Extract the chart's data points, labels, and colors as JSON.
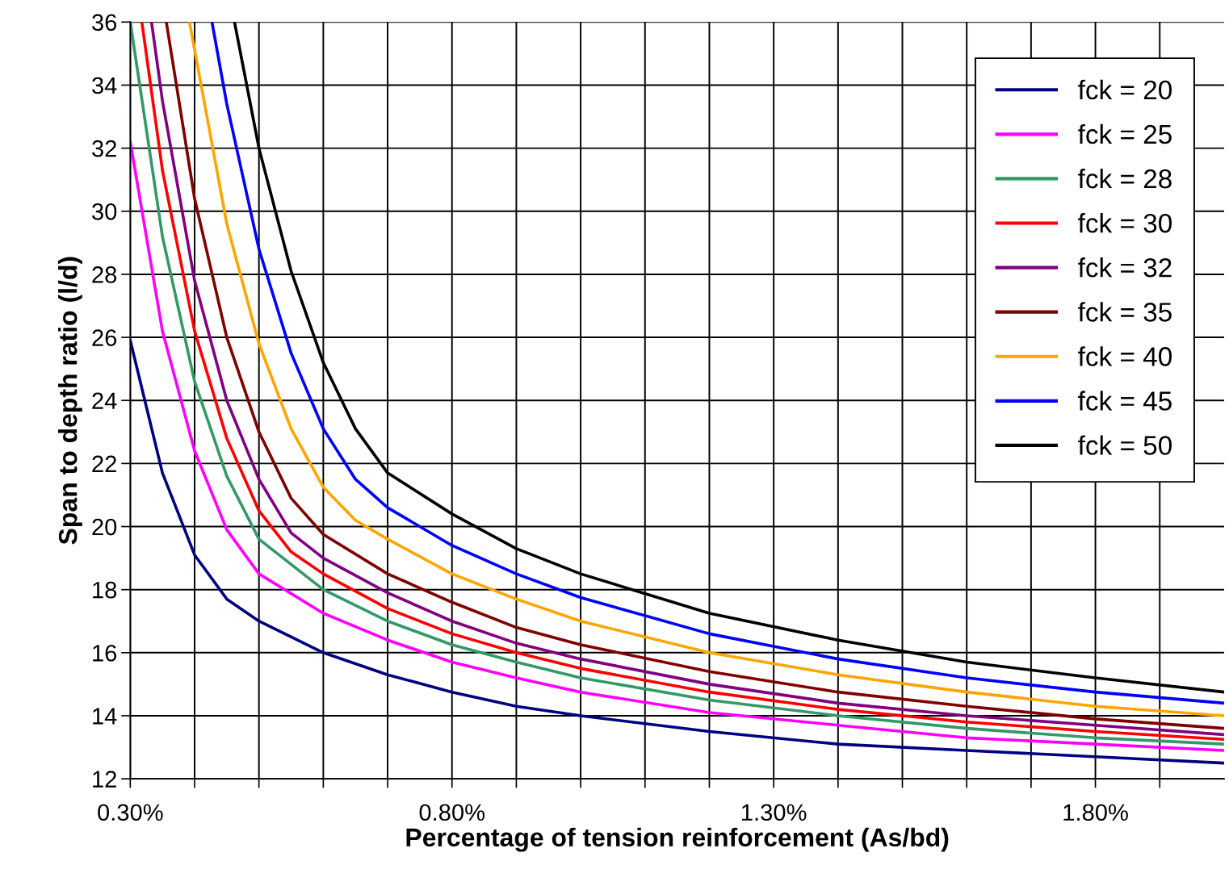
{
  "chart_data": {
    "type": "line",
    "xlabel": "Percentage of tension reinforcement (As/bd)",
    "ylabel": "Span to depth ratio (l/d)",
    "xlim": [
      0.3,
      2.0
    ],
    "ylim": [
      12,
      36
    ],
    "xticks": [
      {
        "value": 0.3,
        "label": "0.30%"
      },
      {
        "value": 0.4,
        "label": null
      },
      {
        "value": 0.5,
        "label": null
      },
      {
        "value": 0.6,
        "label": null
      },
      {
        "value": 0.7,
        "label": null
      },
      {
        "value": 0.8,
        "label": "0.80%"
      },
      {
        "value": 0.9,
        "label": null
      },
      {
        "value": 1.0,
        "label": null
      },
      {
        "value": 1.1,
        "label": null
      },
      {
        "value": 1.2,
        "label": null
      },
      {
        "value": 1.3,
        "label": "1.30%"
      },
      {
        "value": 1.4,
        "label": null
      },
      {
        "value": 1.5,
        "label": null
      },
      {
        "value": 1.6,
        "label": null
      },
      {
        "value": 1.7,
        "label": null
      },
      {
        "value": 1.8,
        "label": "1.80%"
      },
      {
        "value": 1.9,
        "label": null
      }
    ],
    "yticks": [
      12,
      14,
      16,
      18,
      20,
      22,
      24,
      26,
      28,
      30,
      32,
      34,
      36
    ],
    "grid": true,
    "legend": "top right",
    "marker": "none",
    "line_style": "solid",
    "series": [
      {
        "name": "fck = 20",
        "color": "#000080",
        "x": [
          0.3,
          0.35,
          0.4,
          0.45,
          0.5,
          0.6,
          0.7,
          0.8,
          0.9,
          1.0,
          1.2,
          1.4,
          1.6,
          1.8,
          2.0
        ],
        "values": [
          25.9,
          21.7,
          19.1,
          17.7,
          17.0,
          16.0,
          15.3,
          14.75,
          14.3,
          14.0,
          13.5,
          13.1,
          12.9,
          12.7,
          12.5
        ]
      },
      {
        "name": "fck = 25",
        "color": "#ff00ff",
        "x": [
          0.3,
          0.35,
          0.4,
          0.45,
          0.5,
          0.6,
          0.7,
          0.8,
          0.9,
          1.0,
          1.2,
          1.4,
          1.6,
          1.8,
          2.0
        ],
        "values": [
          32.2,
          26.2,
          22.4,
          19.9,
          18.5,
          17.25,
          16.4,
          15.7,
          15.2,
          14.75,
          14.1,
          13.7,
          13.3,
          13.1,
          12.9
        ]
      },
      {
        "name": "fck = 28",
        "color": "#339966",
        "x": [
          0.3,
          0.35,
          0.4,
          0.45,
          0.5,
          0.6,
          0.7,
          0.8,
          0.9,
          1.0,
          1.2,
          1.4,
          1.6,
          1.8,
          2.0
        ],
        "values": [
          36.0,
          29.2,
          24.6,
          21.6,
          19.6,
          18.0,
          17.0,
          16.25,
          15.7,
          15.2,
          14.5,
          14.0,
          13.6,
          13.3,
          13.1
        ]
      },
      {
        "name": "fck = 30",
        "color": "#ff0000",
        "x": [
          0.318,
          0.35,
          0.4,
          0.45,
          0.5,
          0.55,
          0.6,
          0.7,
          0.8,
          0.9,
          1.0,
          1.2,
          1.4,
          1.6,
          1.8,
          2.0
        ],
        "values": [
          36.0,
          31.3,
          26.2,
          22.8,
          20.5,
          19.2,
          18.5,
          17.4,
          16.6,
          16.0,
          15.5,
          14.75,
          14.2,
          13.8,
          13.5,
          13.25
        ]
      },
      {
        "name": "fck = 32",
        "color": "#800080",
        "x": [
          0.333,
          0.35,
          0.4,
          0.45,
          0.5,
          0.55,
          0.6,
          0.7,
          0.8,
          0.9,
          1.0,
          1.2,
          1.4,
          1.6,
          1.8,
          2.0
        ],
        "values": [
          36.0,
          33.5,
          27.8,
          24.0,
          21.5,
          19.8,
          19.0,
          17.9,
          17.0,
          16.3,
          15.8,
          15.0,
          14.4,
          14.0,
          13.7,
          13.4
        ]
      },
      {
        "name": "fck = 35",
        "color": "#800000",
        "x": [
          0.356,
          0.4,
          0.45,
          0.5,
          0.55,
          0.6,
          0.7,
          0.8,
          0.9,
          1.0,
          1.2,
          1.4,
          1.6,
          1.8,
          2.0
        ],
        "values": [
          36.0,
          30.4,
          26.0,
          23.0,
          20.9,
          19.75,
          18.5,
          17.6,
          16.8,
          16.25,
          15.4,
          14.75,
          14.3,
          13.9,
          13.6
        ]
      },
      {
        "name": "fck = 40",
        "color": "#ffa500",
        "x": [
          0.392,
          0.45,
          0.5,
          0.55,
          0.6,
          0.65,
          0.7,
          0.8,
          0.9,
          1.0,
          1.2,
          1.4,
          1.6,
          1.8,
          2.0
        ],
        "values": [
          36.0,
          29.6,
          25.8,
          23.1,
          21.25,
          20.2,
          19.6,
          18.5,
          17.7,
          17.0,
          16.0,
          15.3,
          14.75,
          14.3,
          14.0
        ]
      },
      {
        "name": "fck = 45",
        "color": "#0000ff",
        "x": [
          0.427,
          0.45,
          0.5,
          0.55,
          0.6,
          0.65,
          0.7,
          0.8,
          0.9,
          1.0,
          1.2,
          1.4,
          1.6,
          1.8,
          2.0
        ],
        "values": [
          36.0,
          33.4,
          28.8,
          25.5,
          23.1,
          21.5,
          20.6,
          19.4,
          18.5,
          17.75,
          16.6,
          15.8,
          15.2,
          14.75,
          14.4
        ]
      },
      {
        "name": "fck = 50",
        "color": "#000000",
        "x": [
          0.462,
          0.5,
          0.55,
          0.6,
          0.65,
          0.7,
          0.8,
          0.9,
          1.0,
          1.2,
          1.4,
          1.6,
          1.8,
          2.0
        ],
        "values": [
          36.0,
          32.0,
          28.1,
          25.2,
          23.1,
          21.7,
          20.4,
          19.3,
          18.5,
          17.25,
          16.4,
          15.7,
          15.2,
          14.75
        ]
      }
    ]
  }
}
